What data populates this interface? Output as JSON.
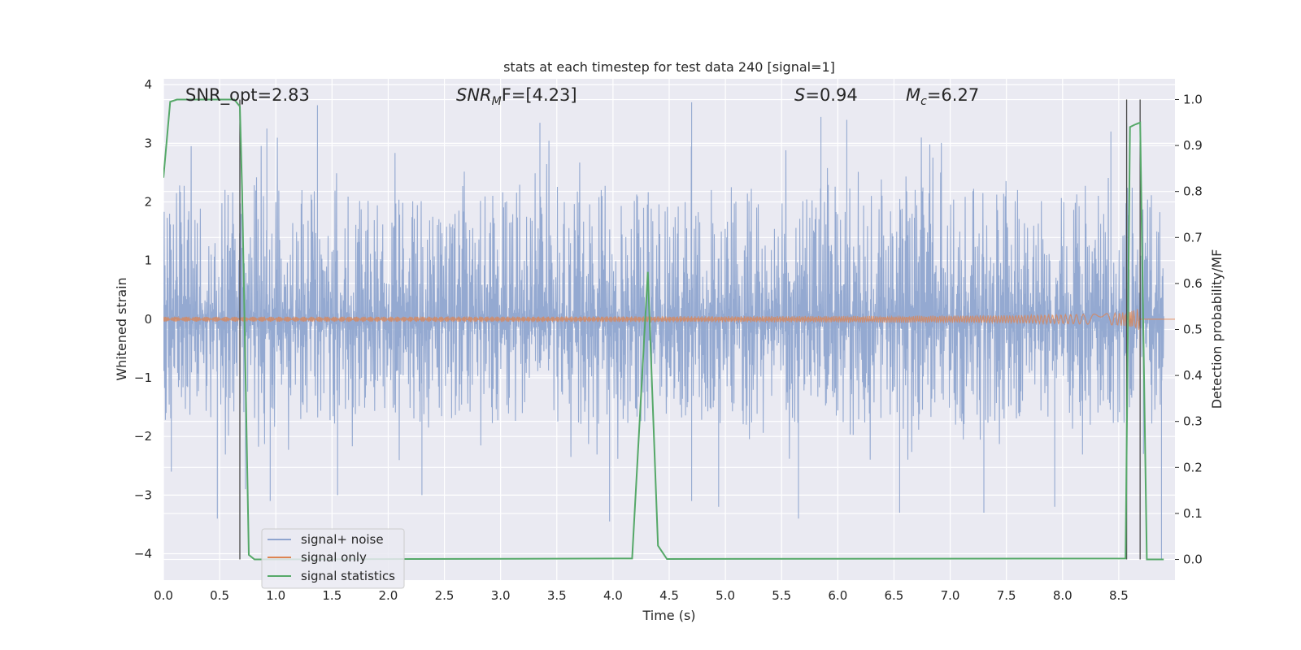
{
  "chart_data": {
    "type": "line",
    "title": "stats at each timestep for test data 240 [signal=1]",
    "xlabel": "Time (s)",
    "ylabel_left": "Whitened strain",
    "ylabel_right": "Detection probability/MF",
    "xlim": [
      0.0,
      9.0
    ],
    "ylim_left": [
      -4.45,
      4.1
    ],
    "ylim_right": [
      -0.045,
      1.045
    ],
    "xticks": [
      "0.0",
      "0.5",
      "1.0",
      "1.5",
      "2.0",
      "2.5",
      "3.0",
      "3.5",
      "4.0",
      "4.5",
      "5.0",
      "5.5",
      "6.0",
      "6.5",
      "7.0",
      "7.5",
      "8.0",
      "8.5"
    ],
    "yticks_left": [
      "4",
      "3",
      "2",
      "1",
      "0",
      "−1",
      "−2",
      "−3",
      "−4"
    ],
    "yticks_left_values": [
      4,
      3,
      2,
      1,
      0,
      -1,
      -2,
      -3,
      -4
    ],
    "yticks_right": [
      "1.0",
      "0.9",
      "0.8",
      "0.7",
      "0.6",
      "0.5",
      "0.4",
      "0.3",
      "0.2",
      "0.1",
      "0.0"
    ],
    "yticks_right_values": [
      1.0,
      0.9,
      0.8,
      0.7,
      0.6,
      0.5,
      0.4,
      0.3,
      0.2,
      0.1,
      0.0
    ],
    "grid": true,
    "legend_placement": "lower-left",
    "annotations": {
      "snr_opt": "SNR_opt=2.83",
      "snr_mf_italic": "SNR",
      "snr_mf_sub": "M",
      "snr_mf_rest": "F=[4.23]",
      "s_italic": "S",
      "s_rest": "=0.94",
      "mc_italic": "M",
      "mc_sub": "c",
      "mc_rest": "=6.27"
    },
    "vlines_x": [
      0.68,
      8.57,
      8.69
    ],
    "series": [
      {
        "name": "signal+ noise",
        "color": "#8fa5cf",
        "kind": "noise",
        "envelope_typical": [
          -1.8,
          2.3
        ],
        "extreme_spikes": [
          [
            0.07,
            -2.6
          ],
          [
            0.48,
            -3.4
          ],
          [
            0.68,
            2.75
          ],
          [
            0.73,
            -2.9
          ],
          [
            0.92,
            3.25
          ],
          [
            0.95,
            -3.1
          ],
          [
            1.37,
            3.65
          ],
          [
            1.55,
            -3.0
          ],
          [
            2.3,
            -3.0
          ],
          [
            3.35,
            3.35
          ],
          [
            3.97,
            -3.45
          ],
          [
            4.7,
            3.7
          ],
          [
            4.7,
            -3.1
          ],
          [
            4.94,
            -3.2
          ],
          [
            5.65,
            -3.4
          ],
          [
            5.85,
            3.45
          ],
          [
            6.08,
            3.4
          ],
          [
            6.55,
            -3.3
          ],
          [
            7.3,
            -3.3
          ],
          [
            7.93,
            -3.2
          ],
          [
            8.43,
            3.2
          ],
          [
            8.57,
            3.35
          ],
          [
            8.72,
            -2.3
          ],
          [
            8.88,
            -4.1
          ]
        ]
      },
      {
        "name": "signal only",
        "color": "#dd8452",
        "kind": "chirp",
        "t_merger": 8.68,
        "amplitude_at_merger": 0.28
      },
      {
        "name": "signal statistics",
        "color": "#55a868",
        "axis": "right",
        "x": [
          0.0,
          0.06,
          0.12,
          0.63,
          0.68,
          0.7,
          0.76,
          0.81,
          4.17,
          4.31,
          4.4,
          4.48,
          8.56,
          8.6,
          8.64,
          8.69,
          8.75,
          8.8,
          8.9
        ],
        "y": [
          0.83,
          0.995,
          1.0,
          1.0,
          0.985,
          0.8,
          0.01,
          0.0,
          0.002,
          0.625,
          0.03,
          0.001,
          0.002,
          0.94,
          0.945,
          0.95,
          0.0,
          0.0,
          0.0
        ]
      }
    ]
  }
}
